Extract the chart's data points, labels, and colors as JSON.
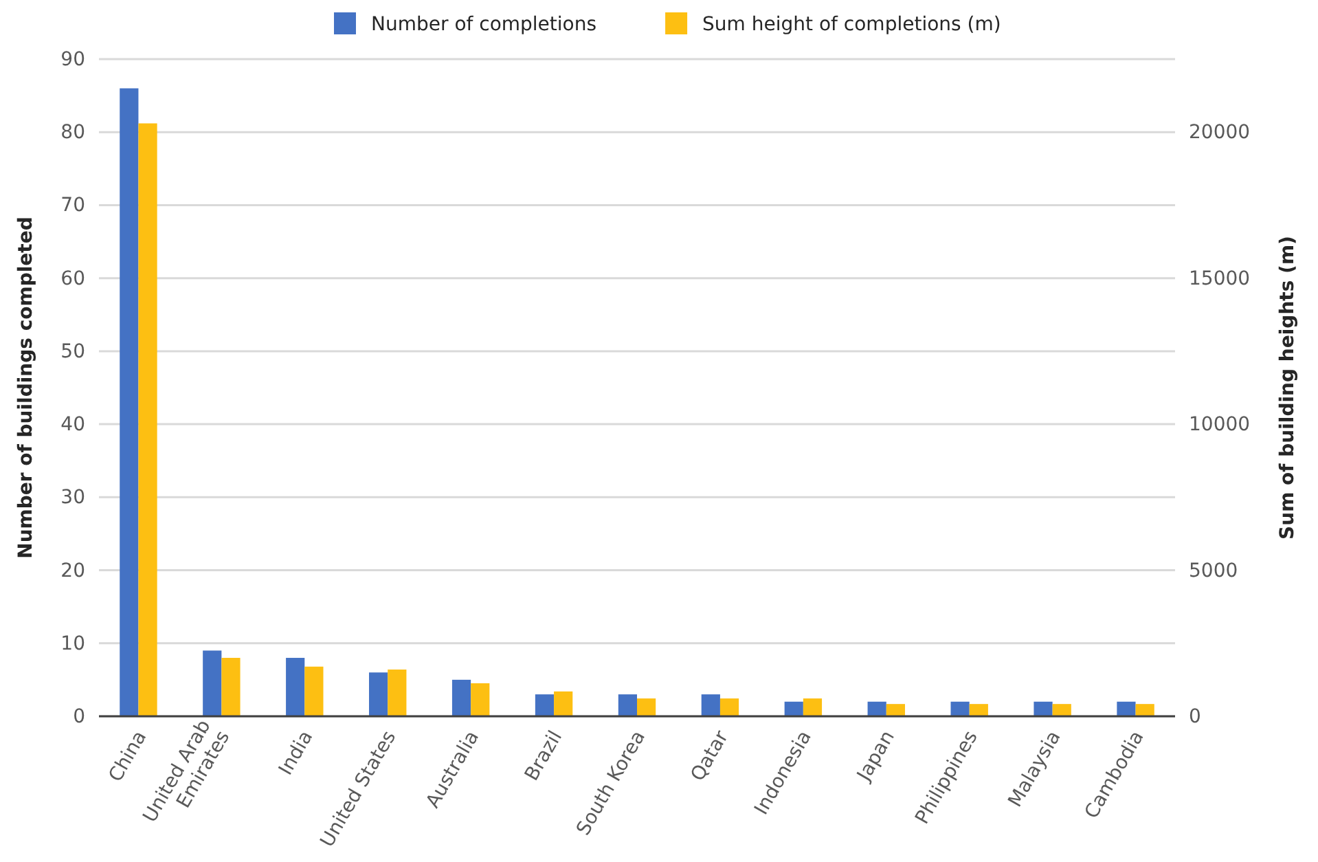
{
  "chart_data": {
    "type": "bar",
    "categories": [
      "China",
      "United Arab Emirates",
      "India",
      "United States",
      "Australia",
      "Brazil",
      "South Korea",
      "Qatar",
      "Indonesia",
      "Japan",
      "Philippines",
      "Malaysia",
      "Cambodia"
    ],
    "ylabel": "Number of buildings completed",
    "y2label": "Sum of building heights (m)",
    "ylim": [
      0,
      90
    ],
    "yticks": [
      0,
      10,
      20,
      30,
      40,
      50,
      60,
      70,
      80,
      90
    ],
    "y2lim": [
      0,
      22500
    ],
    "y2ticks": [
      0,
      5000,
      10000,
      15000,
      20000
    ],
    "grid": "y",
    "legend": "top",
    "series": [
      {
        "name": "Number of completions",
        "color": "#4472c4",
        "values": [
          86,
          9,
          8,
          6,
          5,
          3,
          3,
          3,
          2,
          2,
          2,
          2,
          2
        ]
      },
      {
        "name": "Sum height of completions (m)",
        "color": "#fdbf12",
        "axis": "y2",
        "values": [
          20300,
          2000,
          1700,
          1600,
          1130,
          850,
          610,
          610,
          610,
          420,
          420,
          420,
          420
        ]
      }
    ]
  }
}
